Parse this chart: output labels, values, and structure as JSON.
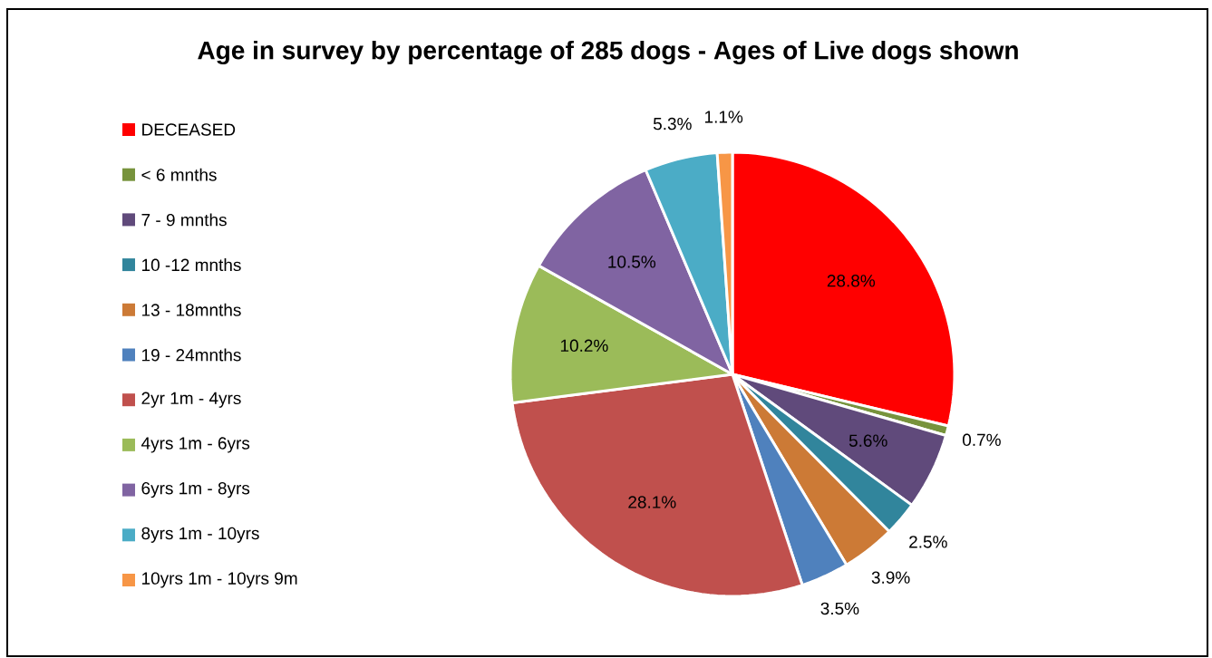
{
  "chart_data": {
    "type": "pie",
    "title": "Age in survey by percentage of 285 dogs - Ages of Live dogs shown",
    "categories": [
      "DECEASED",
      "< 6 mnths",
      "7 - 9 mnths",
      "10 -12 mnths",
      "13 - 18mnths",
      "19 - 24mnths",
      "2yr 1m - 4yrs",
      "4yrs 1m - 6yrs",
      "6yrs 1m - 8yrs",
      "8yrs 1m - 10yrs",
      "10yrs 1m - 10yrs 9m"
    ],
    "values": [
      28.8,
      0.7,
      5.6,
      2.5,
      3.9,
      3.5,
      28.1,
      10.2,
      10.5,
      5.3,
      1.1
    ],
    "value_labels": [
      "28.8%",
      "0.7%",
      "5.6%",
      "2.5%",
      "3.9%",
      "3.5%",
      "28.1%",
      "10.2%",
      "10.5%",
      "5.3%",
      "1.1%"
    ],
    "colors": [
      "#ff0000",
      "#77933c",
      "#604a7b",
      "#31859c",
      "#cc7a36",
      "#4f81bd",
      "#c0504d",
      "#9bbb59",
      "#8064a2",
      "#4bacc6",
      "#f79646"
    ],
    "legend": "left"
  }
}
